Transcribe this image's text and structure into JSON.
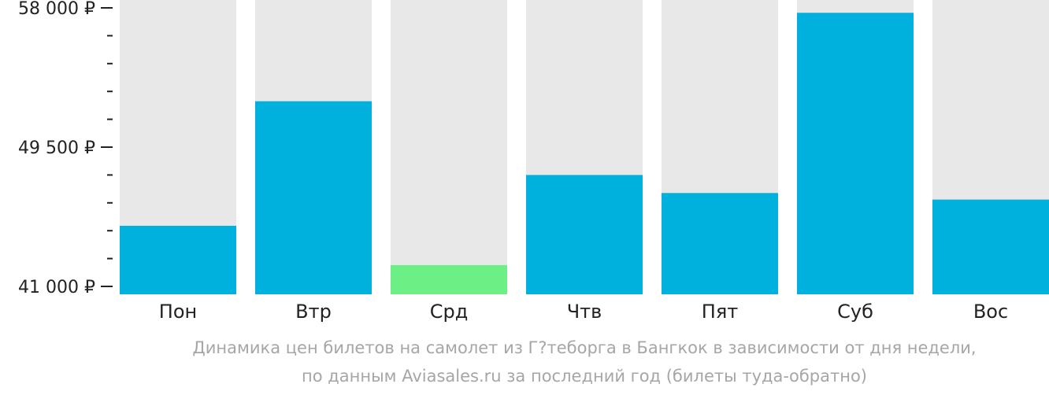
{
  "chart_data": {
    "type": "bar",
    "categories": [
      "Пон",
      "Втр",
      "Срд",
      "Чтв",
      "Пят",
      "Суб",
      "Вос"
    ],
    "values": [
      44700,
      52300,
      42300,
      47800,
      46700,
      57700,
      46300
    ],
    "highlight_index": 2,
    "ylim": [
      41000,
      58000
    ],
    "y_tick_labels": [
      {
        "value": 58000,
        "label": "58 000 ₽"
      },
      {
        "value": 49500,
        "label": "49 500 ₽"
      },
      {
        "value": 41000,
        "label": "41 000 ₽"
      }
    ],
    "minor_ticks_between_labels": 4,
    "colors": {
      "bar": "#00b0dd",
      "bar_highlight": "#6cef85",
      "background_column": "#e8e8e8",
      "axis": "#222222",
      "caption": "#a6a6a6"
    }
  },
  "caption": {
    "line1": "Динамика цен билетов на самолет из Г?теборга в Бангкок в зависимости от дня недели,",
    "line2": "по данным Aviasales.ru за последний год (билеты туда-обратно)"
  }
}
